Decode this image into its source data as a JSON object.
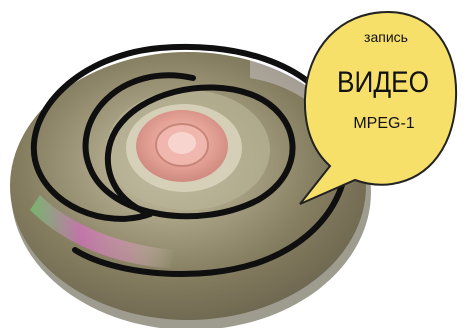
{
  "bubble": {
    "line1": "запись",
    "line2": "ВИДЕО",
    "line3": "MPEG-1"
  },
  "colors": {
    "disc_base": "#8e8668",
    "disc_light": "#c8c2a6",
    "hub_pink": "#e7a39b",
    "spiral": "#0f0f0f",
    "bubble_fill": "#f6e06a",
    "bubble_stroke": "#222222"
  },
  "icons": {
    "disc": "cd-disc-image",
    "speech_bubble": "speech-bubble-shape"
  }
}
